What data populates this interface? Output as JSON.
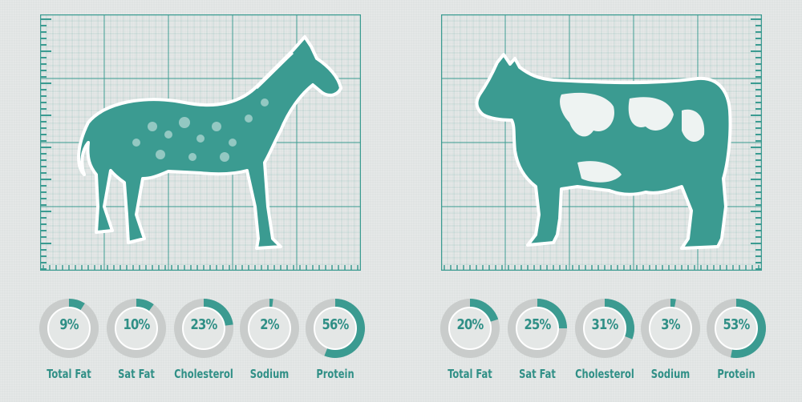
{
  "colors": {
    "teal": "#3b9b91",
    "ring_bg": "#c9cccb",
    "ring_inner": "#e4e7e6",
    "text": "#2f8f86"
  },
  "icons": {
    "left": "horse-illustration",
    "right": "cow-illustration"
  },
  "chart_data": [
    {
      "type": "donut",
      "subject": "horse",
      "categories": [
        "Total Fat",
        "Sat Fat",
        "Cholesterol",
        "Sodium",
        "Protein"
      ],
      "values": [
        9,
        10,
        23,
        2,
        56
      ],
      "labels": [
        "9%",
        "10%",
        "23%",
        "2%",
        "56%"
      ]
    },
    {
      "type": "donut",
      "subject": "cow",
      "categories": [
        "Total Fat",
        "Sat Fat",
        "Cholesterol",
        "Sodium",
        "Protein"
      ],
      "values": [
        20,
        25,
        31,
        3,
        53
      ],
      "labels": [
        "20%",
        "25%",
        "31%",
        "3%",
        "53%"
      ]
    }
  ]
}
